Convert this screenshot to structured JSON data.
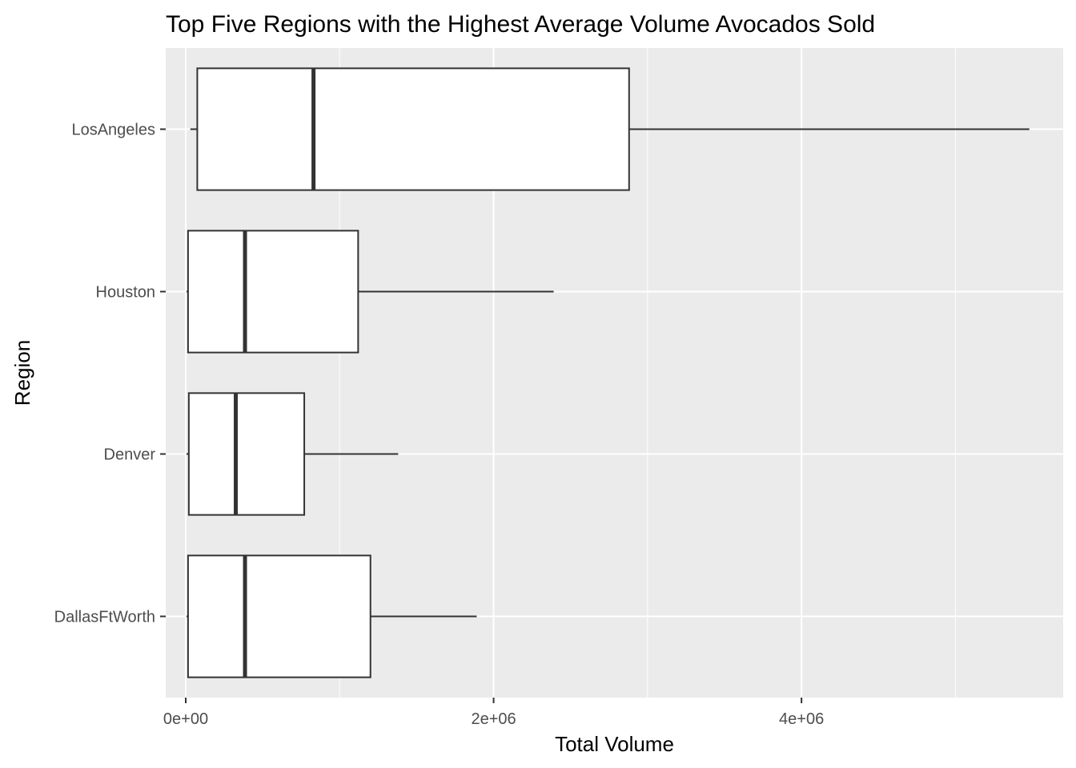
{
  "chart_data": {
    "type": "boxplot",
    "orientation": "horizontal",
    "title": "Top Five Regions with the Highest Average Volume Avocados Sold",
    "xlabel": "Total Volume",
    "ylabel": "Region",
    "xlim": [
      -130000,
      5700000
    ],
    "x_ticks": [
      {
        "value": 0,
        "label": "0e+00"
      },
      {
        "value": 2000000,
        "label": "2e+06"
      },
      {
        "value": 4000000,
        "label": "4e+06"
      }
    ],
    "categories": [
      "DallasFtWorth",
      "Denver",
      "Houston",
      "LosAngeles"
    ],
    "boxes": [
      {
        "category": "DallasFtWorth",
        "min": 5000,
        "q1": 15000,
        "median": 385000,
        "q3": 1200000,
        "max": 1890000
      },
      {
        "category": "Denver",
        "min": 5000,
        "q1": 20000,
        "median": 325000,
        "q3": 770000,
        "max": 1380000
      },
      {
        "category": "Houston",
        "min": 5000,
        "q1": 15000,
        "median": 385000,
        "q3": 1120000,
        "max": 2390000
      },
      {
        "category": "LosAngeles",
        "min": 30000,
        "q1": 75000,
        "median": 830000,
        "q3": 2880000,
        "max": 5480000
      }
    ],
    "grid": true,
    "legend": "none"
  }
}
